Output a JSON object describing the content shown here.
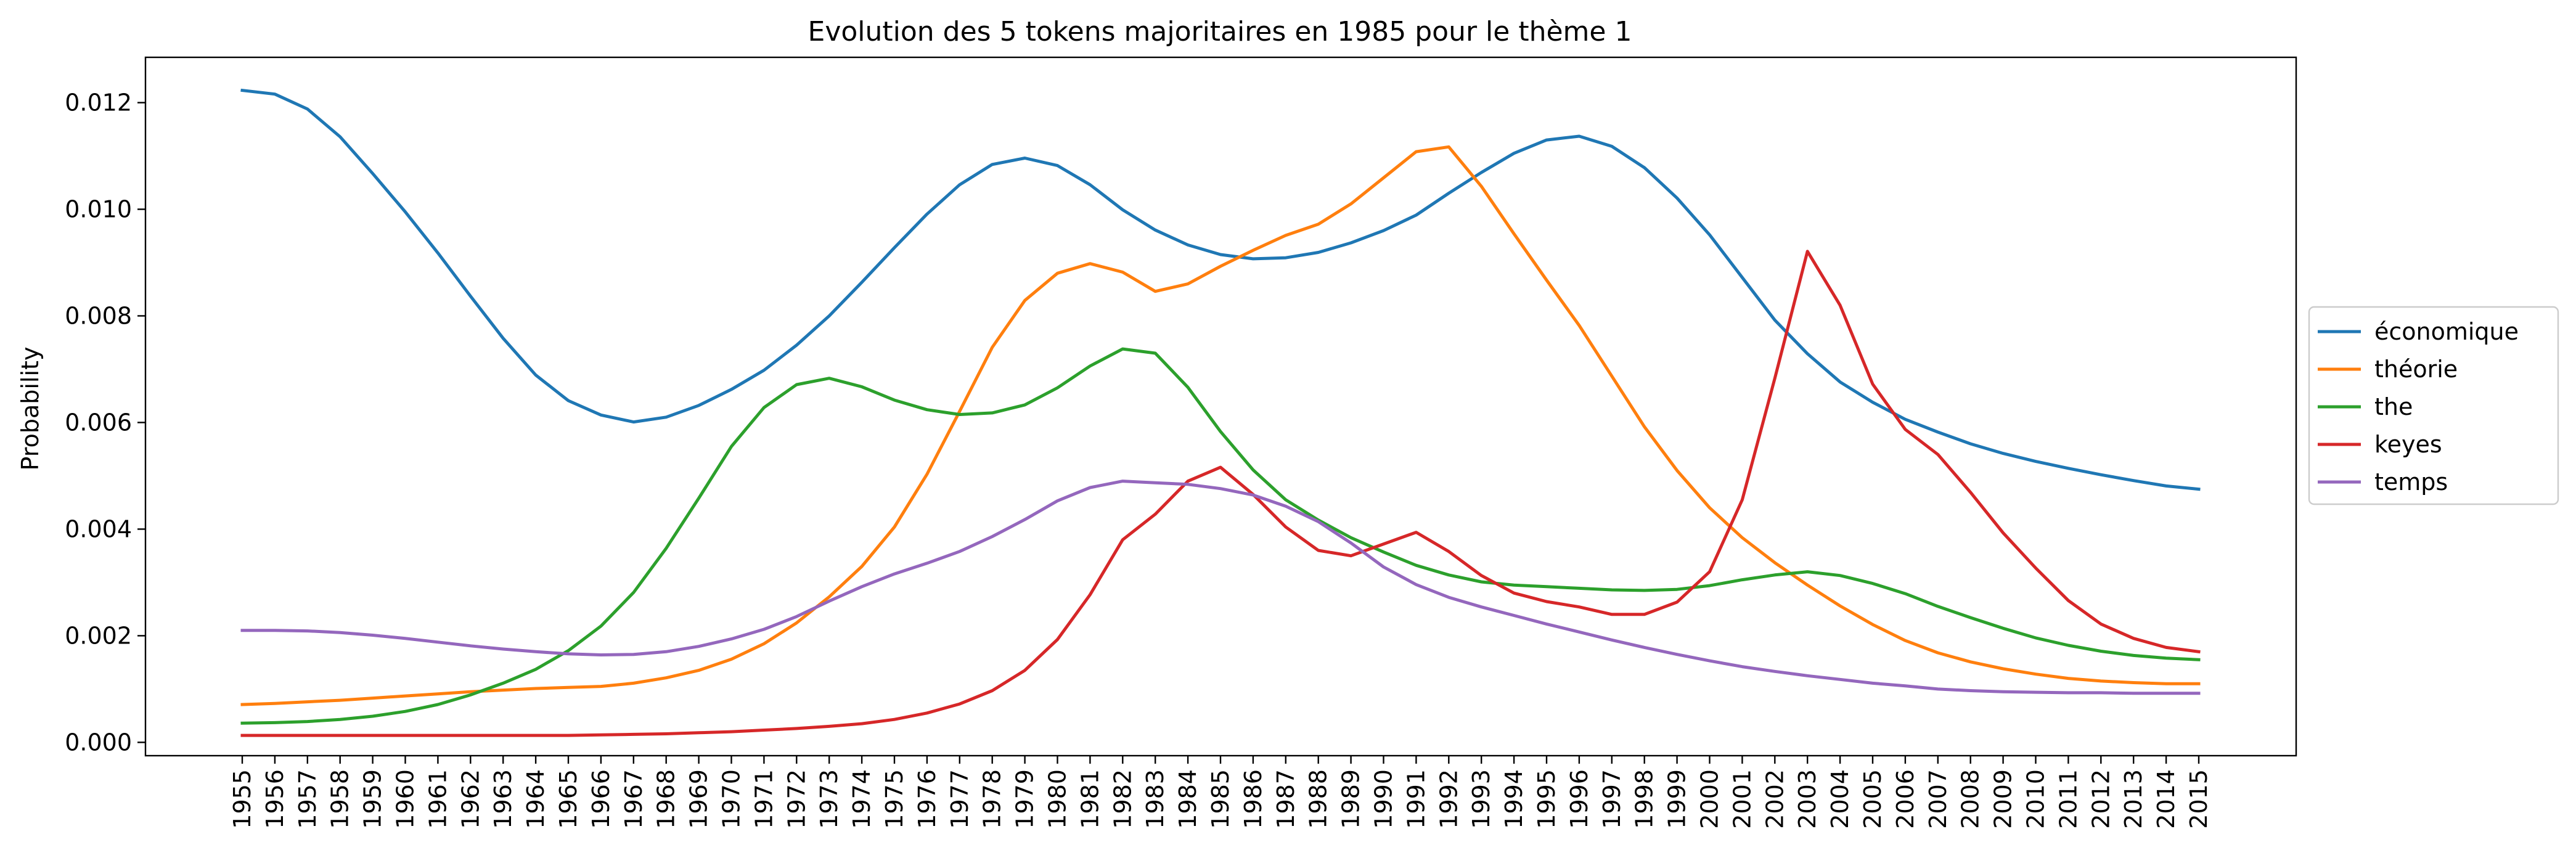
{
  "chart_data": {
    "type": "line",
    "title": "Evolution des 5 tokens majoritaires en 1985 pour le thème 1",
    "xlabel": "",
    "ylabel": "Probability",
    "ylim": [
      -0.00025,
      0.01285
    ],
    "yticks": [
      "0.000",
      "0.002",
      "0.004",
      "0.006",
      "0.008",
      "0.010",
      "0.012"
    ],
    "ytick_values": [
      0,
      0.002,
      0.004,
      0.006,
      0.008,
      0.01,
      0.012
    ],
    "grid": false,
    "legend_position": "center-right",
    "categories": [
      "1955",
      "1956",
      "1957",
      "1958",
      "1959",
      "1960",
      "1961",
      "1962",
      "1963",
      "1964",
      "1965",
      "1966",
      "1967",
      "1968",
      "1969",
      "1970",
      "1971",
      "1972",
      "1973",
      "1974",
      "1975",
      "1976",
      "1977",
      "1978",
      "1979",
      "1980",
      "1981",
      "1982",
      "1983",
      "1984",
      "1985",
      "1986",
      "1987",
      "1988",
      "1989",
      "1990",
      "1991",
      "1992",
      "1993",
      "1994",
      "1995",
      "1996",
      "1997",
      "1998",
      "1999",
      "2000",
      "2001",
      "2002",
      "2003",
      "2004",
      "2005",
      "2006",
      "2007",
      "2008",
      "2009",
      "2010",
      "2011",
      "2012",
      "2013",
      "2014",
      "2015"
    ],
    "series": [
      {
        "name": "économique",
        "color": "#1f77b4",
        "values": [
          0.01223,
          0.01216,
          0.01188,
          0.01136,
          0.01067,
          0.00995,
          0.00918,
          0.00837,
          0.00758,
          0.00689,
          0.00641,
          0.00614,
          0.00601,
          0.0061,
          0.00632,
          0.00662,
          0.00698,
          0.00745,
          0.008,
          0.00863,
          0.00928,
          0.00991,
          0.01046,
          0.01084,
          0.01096,
          0.01082,
          0.01046,
          0.00999,
          0.00961,
          0.00933,
          0.00915,
          0.00907,
          0.00909,
          0.00919,
          0.00937,
          0.0096,
          0.00989,
          0.0103,
          0.01069,
          0.01105,
          0.0113,
          0.01137,
          0.01118,
          0.01078,
          0.01021,
          0.00952,
          0.00872,
          0.00792,
          0.00729,
          0.00676,
          0.00638,
          0.00606,
          0.00582,
          0.0056,
          0.00542,
          0.00527,
          0.00514,
          0.00502,
          0.00491,
          0.00481,
          0.00475
        ]
      },
      {
        "name": "théorie",
        "color": "#ff7f0e",
        "values": [
          0.00071,
          0.00073,
          0.00076,
          0.00079,
          0.00083,
          0.00087,
          0.00091,
          0.00095,
          0.00098,
          0.00101,
          0.00103,
          0.00105,
          0.00111,
          0.00121,
          0.00135,
          0.00156,
          0.00185,
          0.00224,
          0.00273,
          0.0033,
          0.00404,
          0.00503,
          0.00621,
          0.00741,
          0.00829,
          0.0088,
          0.00898,
          0.00882,
          0.00846,
          0.0086,
          0.00893,
          0.00923,
          0.00951,
          0.00972,
          0.0101,
          0.01059,
          0.01108,
          0.01117,
          0.01043,
          0.00954,
          0.00867,
          0.00782,
          0.00687,
          0.00592,
          0.0051,
          0.0044,
          0.00384,
          0.00337,
          0.00295,
          0.00256,
          0.00221,
          0.00191,
          0.00168,
          0.00151,
          0.00138,
          0.00128,
          0.0012,
          0.00115,
          0.00112,
          0.0011,
          0.0011
        ]
      },
      {
        "name": "the",
        "color": "#2ca02c",
        "values": [
          0.00036,
          0.00037,
          0.00039,
          0.00043,
          0.00049,
          0.00058,
          0.00071,
          0.00089,
          0.00111,
          0.00137,
          0.00172,
          0.00218,
          0.00281,
          0.00364,
          0.00458,
          0.00555,
          0.00628,
          0.00671,
          0.00683,
          0.00667,
          0.00642,
          0.00624,
          0.00615,
          0.00618,
          0.00633,
          0.00665,
          0.00706,
          0.00738,
          0.0073,
          0.00666,
          0.00583,
          0.00511,
          0.00455,
          0.00417,
          0.00384,
          0.00357,
          0.00332,
          0.00314,
          0.00301,
          0.00295,
          0.00292,
          0.00289,
          0.00286,
          0.00285,
          0.00287,
          0.00294,
          0.00305,
          0.00314,
          0.0032,
          0.00313,
          0.00298,
          0.00279,
          0.00255,
          0.00234,
          0.00214,
          0.00196,
          0.00182,
          0.00171,
          0.00163,
          0.00158,
          0.00155
        ]
      },
      {
        "name": "keyes",
        "color": "#d62728",
        "values": [
          0.00013,
          0.00013,
          0.00013,
          0.00013,
          0.00013,
          0.00013,
          0.00013,
          0.00013,
          0.00013,
          0.00013,
          0.00013,
          0.00014,
          0.00015,
          0.00016,
          0.00018,
          0.0002,
          0.00023,
          0.00026,
          0.0003,
          0.00035,
          0.00043,
          0.00055,
          0.00072,
          0.00097,
          0.00135,
          0.00193,
          0.00277,
          0.0038,
          0.00428,
          0.0049,
          0.00516,
          0.00465,
          0.00404,
          0.0036,
          0.0035,
          0.00372,
          0.00394,
          0.00358,
          0.00313,
          0.0028,
          0.00264,
          0.00254,
          0.0024,
          0.0024,
          0.00263,
          0.0032,
          0.00455,
          0.00683,
          0.00921,
          0.0082,
          0.00672,
          0.00587,
          0.0054,
          0.00469,
          0.00393,
          0.00327,
          0.00266,
          0.00222,
          0.00195,
          0.00178,
          0.0017
        ]
      },
      {
        "name": "temps",
        "color": "#9467bd",
        "values": [
          0.0021,
          0.0021,
          0.00209,
          0.00206,
          0.00201,
          0.00195,
          0.00188,
          0.00181,
          0.00175,
          0.0017,
          0.00166,
          0.00164,
          0.00165,
          0.0017,
          0.0018,
          0.00194,
          0.00212,
          0.00236,
          0.00265,
          0.00292,
          0.00316,
          0.00336,
          0.00358,
          0.00386,
          0.00418,
          0.00453,
          0.00478,
          0.0049,
          0.00487,
          0.00484,
          0.00476,
          0.00464,
          0.00443,
          0.00414,
          0.00374,
          0.00329,
          0.00296,
          0.00272,
          0.00254,
          0.00238,
          0.00222,
          0.00207,
          0.00192,
          0.00178,
          0.00165,
          0.00153,
          0.00142,
          0.00133,
          0.00125,
          0.00118,
          0.00111,
          0.00106,
          0.001,
          0.00097,
          0.00095,
          0.00094,
          0.00093,
          0.00093,
          0.00092,
          0.00092,
          0.00092
        ]
      }
    ]
  }
}
